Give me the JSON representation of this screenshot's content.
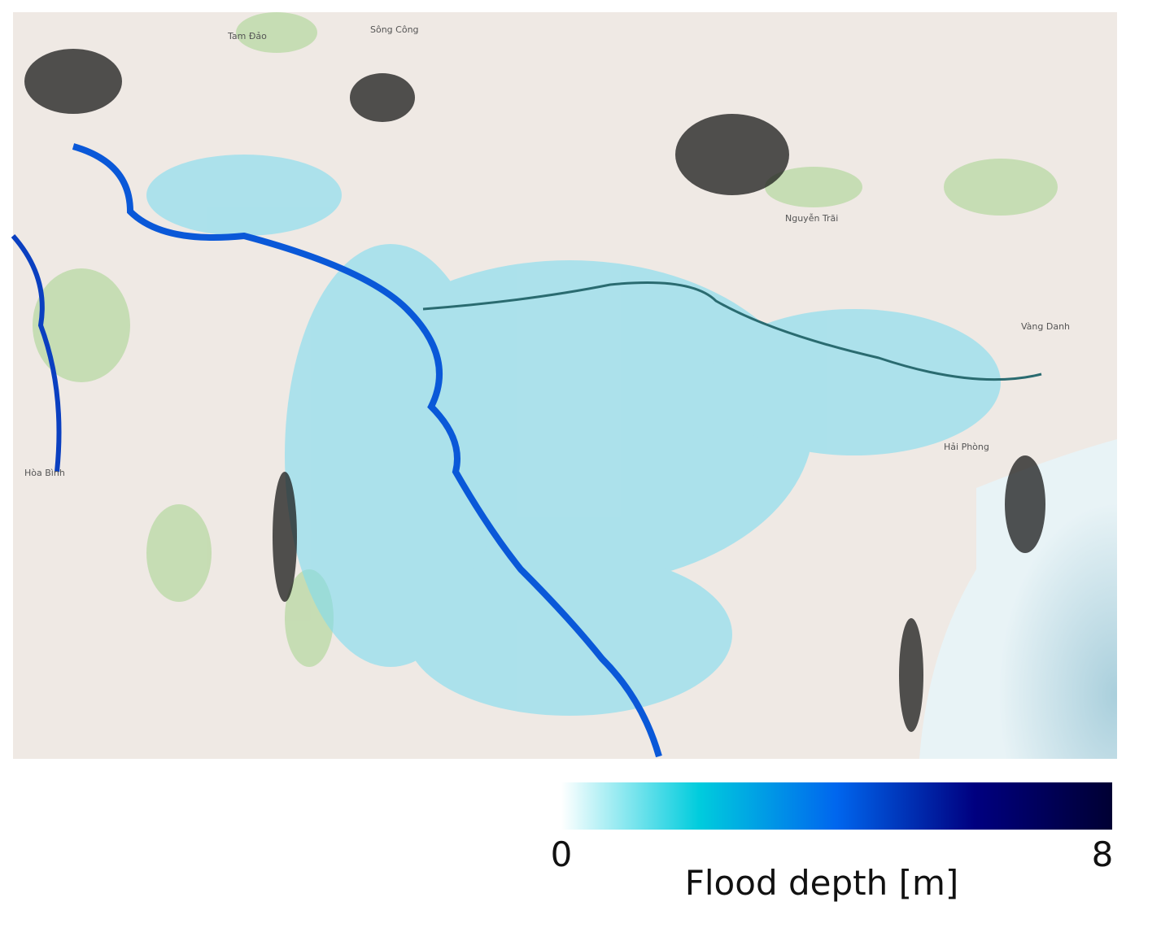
{
  "map": {
    "labels": [
      "Sông Công",
      "Nguyễn Trãi",
      "Vàng Danh",
      "Hải Phòng",
      "Hòa Bình",
      "Tam Đảo"
    ]
  },
  "legend": {
    "title": "Flood depth [m]",
    "min": 0,
    "max": 8,
    "colors": [
      "#ffffff",
      "#00ccdd",
      "#0066ee",
      "#000080",
      "#000033"
    ]
  }
}
